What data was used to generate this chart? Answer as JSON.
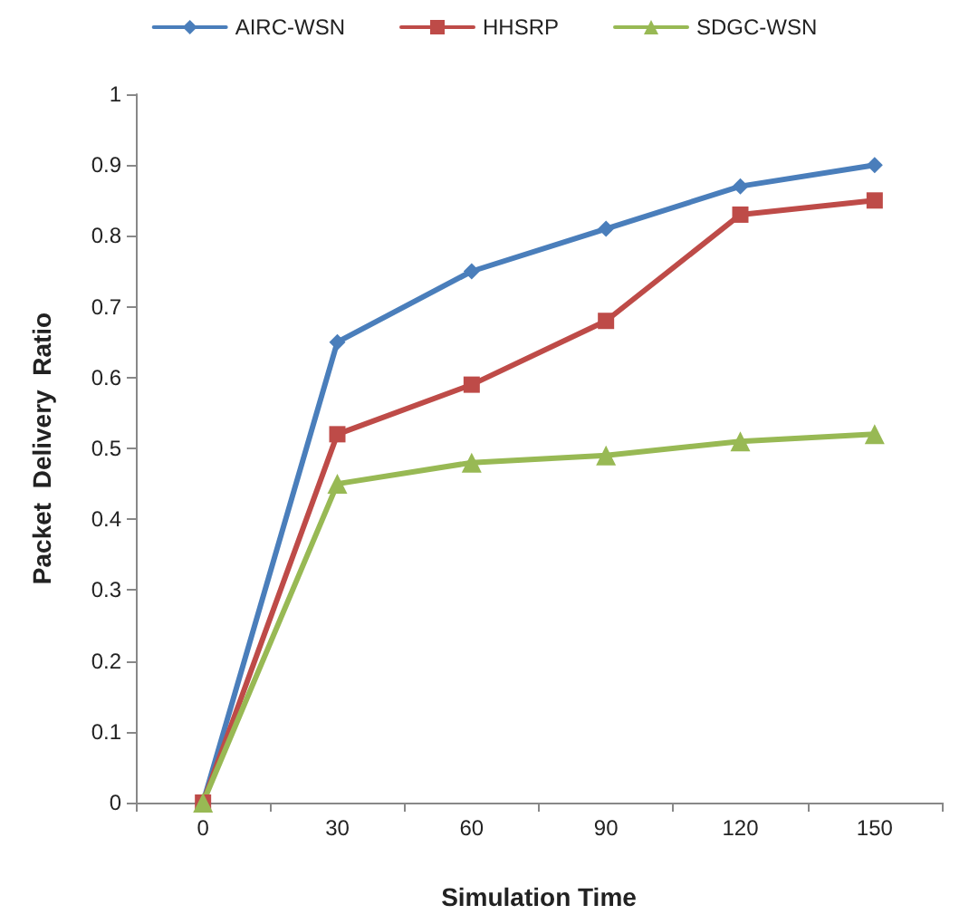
{
  "chart_data": {
    "type": "line",
    "xlabel": "Simulation Time",
    "ylabel": "Packet  Delivery  Ratio",
    "categories": [
      "0",
      "30",
      "60",
      "90",
      "120",
      "150"
    ],
    "series": [
      {
        "name": "AIRC-WSN",
        "color": "#4a7ebb",
        "marker": "diamond",
        "values": [
          0,
          0.65,
          0.75,
          0.81,
          0.87,
          0.9
        ]
      },
      {
        "name": "HHSRP",
        "color": "#be4b48",
        "marker": "square",
        "values": [
          0,
          0.52,
          0.59,
          0.68,
          0.83,
          0.85
        ]
      },
      {
        "name": "SDGC-WSN",
        "color": "#98b954",
        "marker": "triangle",
        "values": [
          0,
          0.45,
          0.48,
          0.49,
          0.51,
          0.52
        ]
      }
    ],
    "ylim": [
      0,
      1
    ],
    "yticks": [
      0,
      0.1,
      0.2,
      0.3,
      0.4,
      0.5,
      0.6,
      0.7,
      0.8,
      0.9,
      1
    ],
    "grid": false,
    "legend": "top",
    "line_style": "solid"
  }
}
